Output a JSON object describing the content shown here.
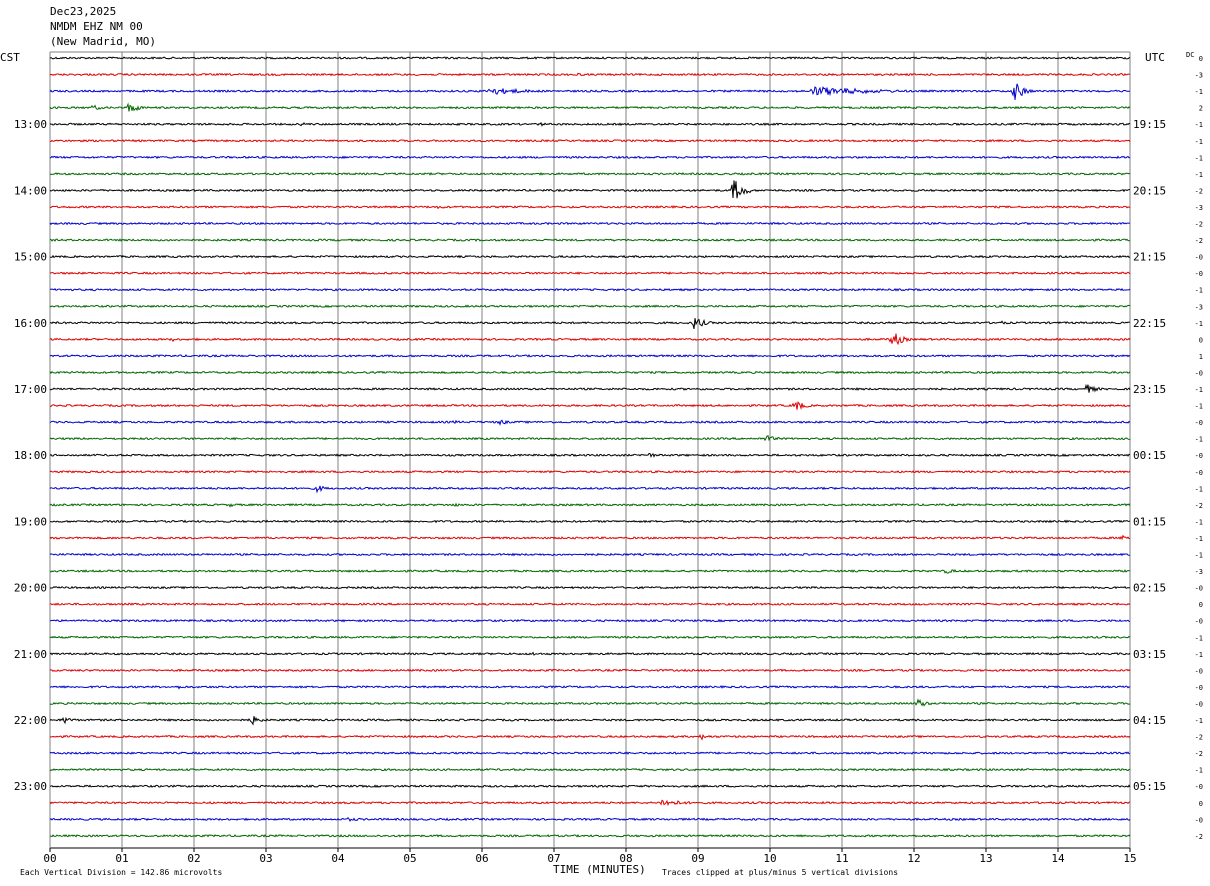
{
  "header": {
    "date": "Dec23,2025",
    "station": "NMDM EHZ NM 00",
    "location": "(New Madrid, MO)"
  },
  "left_tz_label": "CST",
  "right_tz_label": "UTC",
  "dc_label": "DC",
  "footer": {
    "vertical_division": "Each Vertical Division =  142.86 microvolts",
    "time_label": "TIME (MINUTES)",
    "clip_note": "Traces clipped at plus/minus 5 vertical divisions"
  },
  "colors": {
    "trace_cycle": [
      "#000000",
      "#dd0000",
      "#0000cc",
      "#006600"
    ],
    "grid": "#808080"
  },
  "chart_data": {
    "type": "line",
    "title": "",
    "xlabel": "TIME (MINUTES)",
    "xlim": [
      0,
      15
    ],
    "x_ticks": [
      "00",
      "01",
      "02",
      "03",
      "04",
      "05",
      "06",
      "07",
      "08",
      "09",
      "10",
      "11",
      "12",
      "13",
      "14",
      "15"
    ],
    "trace_count": 48,
    "cst_hour_labels": [
      "13:00",
      "14:00",
      "15:00",
      "16:00",
      "17:00",
      "18:00",
      "19:00",
      "20:00",
      "21:00",
      "22:00",
      "23:00"
    ],
    "utc_hour_labels": [
      "19:15",
      "20:15",
      "21:15",
      "22:15",
      "23:15",
      "00:15",
      "01:15",
      "02:15",
      "03:15",
      "04:15",
      "05:15"
    ],
    "dc_offsets": [
      "0",
      "-3",
      "-1",
      "2",
      "-1",
      "-1",
      "-1",
      "-1",
      "-2",
      "-3",
      "-2",
      "-2",
      "-0",
      "-0",
      "-1",
      "-3",
      "-1",
      "0",
      "1",
      "-0",
      "-1",
      "-1",
      "-0",
      "-1",
      "-0",
      "-0",
      "-1",
      "-2",
      "-1",
      "-1",
      "-1",
      "-3",
      "-0",
      "0",
      "-0",
      "-1",
      "-1",
      "-0",
      "-0",
      "-0",
      "-1",
      "-2",
      "-2",
      "-1",
      "-0",
      "0",
      "-0",
      "-2"
    ],
    "events": [
      {
        "trace": 1,
        "minute": 7.3,
        "amplitude": 2
      },
      {
        "trace": 2,
        "minute": 6.1,
        "amplitude": 4,
        "duration": 1.0
      },
      {
        "trace": 2,
        "minute": 10.6,
        "amplitude": 5,
        "duration": 1.6
      },
      {
        "trace": 2,
        "minute": 13.4,
        "amplitude": 10
      },
      {
        "trace": 3,
        "minute": 1.1,
        "amplitude": 6
      },
      {
        "trace": 3,
        "minute": 0.6,
        "amplitude": 3
      },
      {
        "trace": 4,
        "minute": 3.5,
        "amplitude": 2
      },
      {
        "trace": 4,
        "minute": 6.8,
        "amplitude": 2
      },
      {
        "trace": 8,
        "minute": 9.5,
        "amplitude": 13
      },
      {
        "trace": 9,
        "minute": 5.4,
        "amplitude": 2
      },
      {
        "trace": 16,
        "minute": 8.95,
        "amplitude": 7
      },
      {
        "trace": 16,
        "minute": 13.2,
        "amplitude": 2
      },
      {
        "trace": 17,
        "minute": 11.7,
        "amplitude": 9
      },
      {
        "trace": 17,
        "minute": 1.7,
        "amplitude": 2
      },
      {
        "trace": 18,
        "minute": 11.2,
        "amplitude": 2
      },
      {
        "trace": 20,
        "minute": 14.4,
        "amplitude": 5
      },
      {
        "trace": 21,
        "minute": 10.35,
        "amplitude": 6
      },
      {
        "trace": 22,
        "minute": 5.6,
        "amplitude": 2
      },
      {
        "trace": 22,
        "minute": 6.25,
        "amplitude": 3
      },
      {
        "trace": 23,
        "minute": 9.95,
        "amplitude": 4
      },
      {
        "trace": 24,
        "minute": 8.3,
        "amplitude": 3
      },
      {
        "trace": 26,
        "minute": 3.7,
        "amplitude": 4
      },
      {
        "trace": 27,
        "minute": 2.5,
        "amplitude": 2
      },
      {
        "trace": 27,
        "minute": 5.6,
        "amplitude": 2
      },
      {
        "trace": 29,
        "minute": 14.9,
        "amplitude": 3
      },
      {
        "trace": 31,
        "minute": 12.45,
        "amplitude": 3
      },
      {
        "trace": 36,
        "minute": 6.7,
        "amplitude": 2
      },
      {
        "trace": 38,
        "minute": 1.8,
        "amplitude": 2
      },
      {
        "trace": 39,
        "minute": 12.05,
        "amplitude": 5
      },
      {
        "trace": 40,
        "minute": 0.2,
        "amplitude": 4
      },
      {
        "trace": 40,
        "minute": 2.8,
        "amplitude": 5
      },
      {
        "trace": 41,
        "minute": 9.05,
        "amplitude": 3
      },
      {
        "trace": 45,
        "minute": 8.5,
        "amplitude": 4,
        "duration": 0.6
      },
      {
        "trace": 46,
        "minute": 4.1,
        "amplitude": 2,
        "duration": 0.6
      }
    ]
  }
}
